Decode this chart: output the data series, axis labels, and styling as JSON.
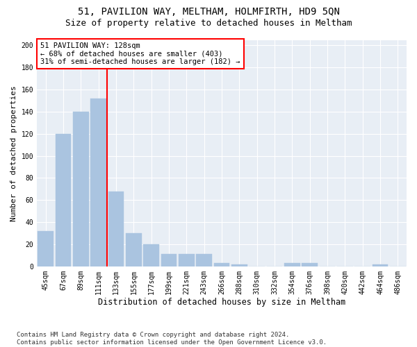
{
  "title": "51, PAVILION WAY, MELTHAM, HOLMFIRTH, HD9 5QN",
  "subtitle": "Size of property relative to detached houses in Meltham",
  "xlabel": "Distribution of detached houses by size in Meltham",
  "ylabel": "Number of detached properties",
  "bar_labels": [
    "45sqm",
    "67sqm",
    "89sqm",
    "111sqm",
    "133sqm",
    "155sqm",
    "177sqm",
    "199sqm",
    "221sqm",
    "243sqm",
    "266sqm",
    "288sqm",
    "310sqm",
    "332sqm",
    "354sqm",
    "376sqm",
    "398sqm",
    "420sqm",
    "442sqm",
    "464sqm",
    "486sqm"
  ],
  "bar_values": [
    32,
    120,
    140,
    152,
    68,
    30,
    20,
    11,
    11,
    11,
    3,
    2,
    0,
    0,
    3,
    3,
    0,
    0,
    0,
    2,
    0
  ],
  "bar_color": "#aac4e0",
  "bar_edgecolor": "#aac4e0",
  "vline_color": "red",
  "annotation_text": "51 PAVILION WAY: 128sqm\n← 68% of detached houses are smaller (403)\n31% of semi-detached houses are larger (182) →",
  "annotation_box_color": "white",
  "annotation_box_edgecolor": "red",
  "ylim": [
    0,
    205
  ],
  "yticks": [
    0,
    20,
    40,
    60,
    80,
    100,
    120,
    140,
    160,
    180,
    200
  ],
  "bg_color": "#e8eef5",
  "footnote": "Contains HM Land Registry data © Crown copyright and database right 2024.\nContains public sector information licensed under the Open Government Licence v3.0.",
  "title_fontsize": 10,
  "subtitle_fontsize": 9,
  "xlabel_fontsize": 8.5,
  "ylabel_fontsize": 8,
  "tick_fontsize": 7,
  "annotation_fontsize": 7.5,
  "footnote_fontsize": 6.5
}
